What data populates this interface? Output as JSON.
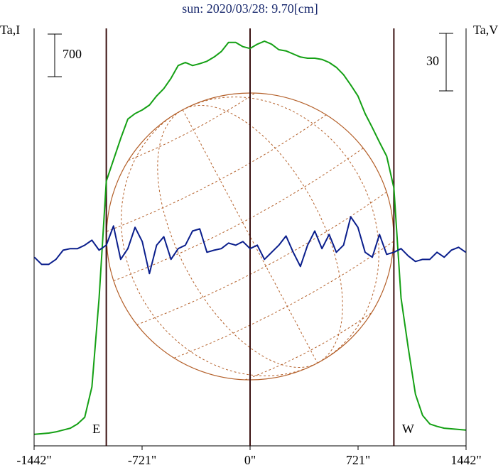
{
  "chart_data": {
    "type": "line",
    "title": "sun: 2020/03/28: 9.70[cm]",
    "ylabel": "Ta,I",
    "y2label": "Ta,V",
    "x": [
      -1440,
      -1392,
      -1344,
      -1296,
      -1248,
      -1200,
      -1152,
      -1104,
      -1056,
      -1008,
      -960,
      -912,
      -864,
      -816,
      -768,
      -720,
      -672,
      -624,
      -576,
      -528,
      -480,
      -432,
      -384,
      -336,
      -288,
      -240,
      -192,
      -144,
      -96,
      -48,
      0,
      48,
      96,
      144,
      192,
      240,
      288,
      336,
      384,
      432,
      480,
      528,
      576,
      624,
      672,
      720,
      768,
      816,
      864,
      912,
      960,
      1008,
      1056,
      1104,
      1152,
      1200,
      1248,
      1296,
      1344,
      1392,
      1440
    ],
    "series": [
      {
        "color": "#14a014",
        "axis": "y",
        "values": [
          190,
          200,
          210,
          230,
          260,
          290,
          360,
          470,
          970,
          2430,
          4350,
          4700,
          5050,
          5370,
          5460,
          5520,
          5600,
          5750,
          5870,
          6040,
          6250,
          6300,
          6250,
          6280,
          6320,
          6390,
          6480,
          6630,
          6630,
          6560,
          6530,
          6600,
          6650,
          6600,
          6510,
          6490,
          6440,
          6390,
          6370,
          6370,
          6350,
          6300,
          6220,
          6100,
          5930,
          5750,
          5460,
          5230,
          4990,
          4760,
          4240,
          2430,
          1610,
          850,
          500,
          360,
          320,
          290,
          280,
          270,
          260
        ]
      },
      {
        "color": "#0a1e8c",
        "axis": "y2",
        "values": [
          -2.6,
          -6.3,
          -6.3,
          -3.7,
          1.1,
          1.9,
          1.9,
          3.7,
          6.3,
          1.1,
          3.7,
          13.7,
          -3.7,
          1.9,
          13.0,
          5.6,
          -11.1,
          3.7,
          8.1,
          -3.7,
          1.9,
          3.7,
          11.1,
          12.2,
          0,
          1.1,
          1.9,
          4.8,
          3.7,
          5.6,
          1.9,
          3.7,
          -3.7,
          0,
          3.7,
          8.5,
          0,
          -7.4,
          3.7,
          11.1,
          1.9,
          9.3,
          0,
          3.7,
          18.5,
          13.0,
          0,
          -2.6,
          9.3,
          -1.1,
          0,
          1.9,
          -1.9,
          -4.8,
          -3.7,
          -3.7,
          0,
          -2.6,
          1.1,
          2.6,
          0
        ]
      }
    ],
    "xlim": [
      -1442,
      1442
    ],
    "xticks": [
      {
        "value": -1442,
        "label": "-1442\""
      },
      {
        "value": -721,
        "label": "-721\""
      },
      {
        "value": 0,
        "label": "0\""
      },
      {
        "value": 721,
        "label": "721\""
      },
      {
        "value": 1442,
        "label": "1442\""
      }
    ],
    "ylim": [
      0,
      6860
    ],
    "y2lim": [
      -101,
      116.8
    ],
    "y_scale_bar": 700,
    "y2_scale_bar": 30,
    "vlines": [
      {
        "value": -960,
        "label": "E"
      },
      {
        "value": 0
      },
      {
        "value": 960,
        "label": "W"
      }
    ]
  }
}
